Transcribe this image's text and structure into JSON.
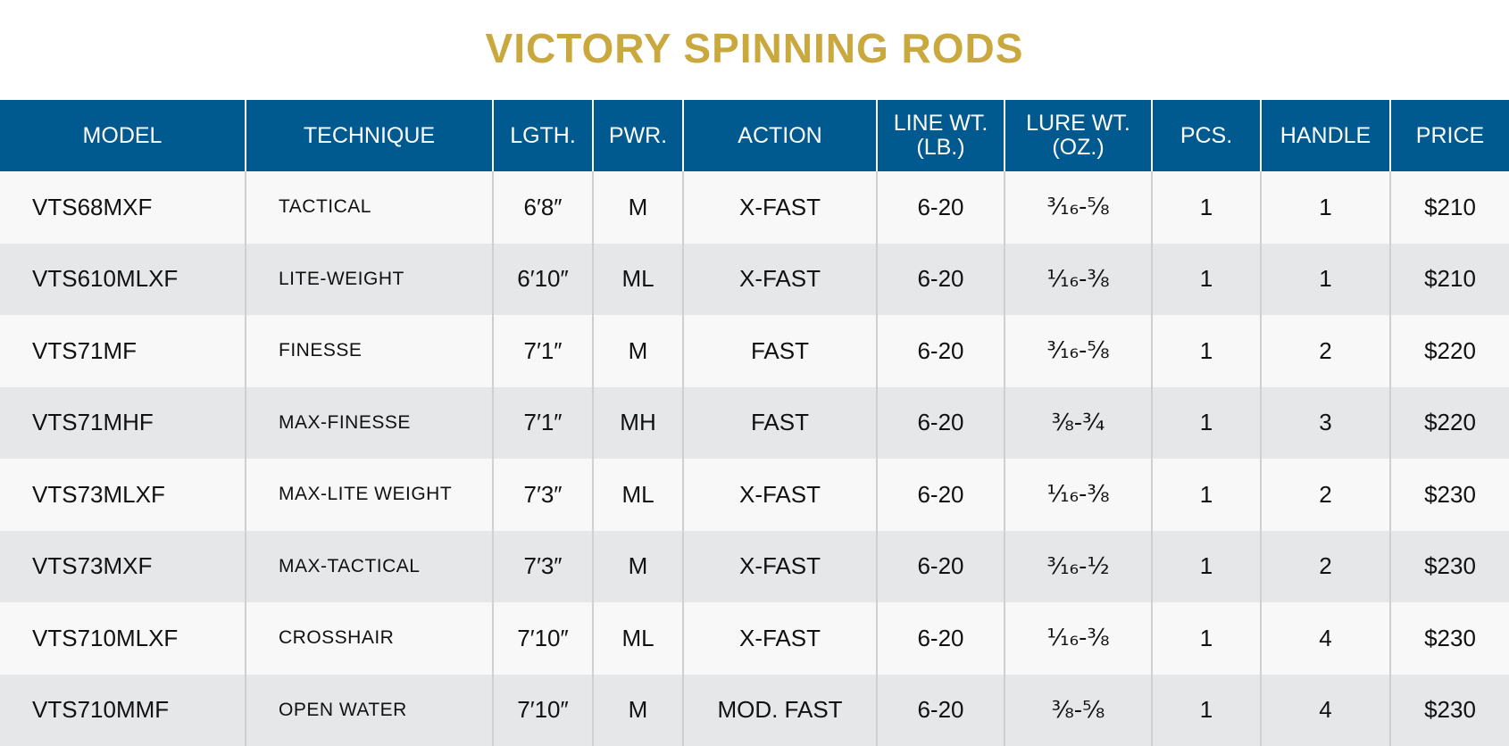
{
  "title": "VICTORY SPINNING RODS",
  "table": {
    "header": [
      [
        "MODEL"
      ],
      [
        "TECHNIQUE"
      ],
      [
        "LGTH."
      ],
      [
        "PWR."
      ],
      [
        "ACTION"
      ],
      [
        "LINE WT.",
        "(LB.)"
      ],
      [
        "LURE WT.",
        "(OZ.)"
      ],
      [
        "PCS."
      ],
      [
        "HANDLE"
      ],
      [
        "PRICE"
      ]
    ],
    "rows": [
      [
        "VTS68MXF",
        "TACTICAL",
        "6′8″",
        "M",
        "X-FAST",
        "6-20",
        "³⁄₁₆-⅝",
        "1",
        "1",
        "$210"
      ],
      [
        "VTS610MLXF",
        "LITE-WEIGHT",
        "6′10″",
        "ML",
        "X-FAST",
        "6-20",
        "¹⁄₁₆-⅜",
        "1",
        "1",
        "$210"
      ],
      [
        "VTS71MF",
        "FINESSE",
        "7′1″",
        "M",
        "FAST",
        "6-20",
        "³⁄₁₆-⅝",
        "1",
        "2",
        "$220"
      ],
      [
        "VTS71MHF",
        "MAX-FINESSE",
        "7′1″",
        "MH",
        "FAST",
        "6-20",
        "⅜-¾",
        "1",
        "3",
        "$220"
      ],
      [
        "VTS73MLXF",
        "MAX-LITE WEIGHT",
        "7′3″",
        "ML",
        "X-FAST",
        "6-20",
        "¹⁄₁₆-⅜",
        "1",
        "2",
        "$230"
      ],
      [
        "VTS73MXF",
        "MAX-TACTICAL",
        "7′3″",
        "M",
        "X-FAST",
        "6-20",
        "³⁄₁₆-½",
        "1",
        "2",
        "$230"
      ],
      [
        "VTS710MLXF",
        "CROSSHAIR",
        "7′10″",
        "ML",
        "X-FAST",
        "6-20",
        "¹⁄₁₆-⅜",
        "1",
        "4",
        "$230"
      ],
      [
        "VTS710MMF",
        "OPEN WATER",
        "7′10″",
        "M",
        "MOD. FAST",
        "6-20",
        "⅜-⅝",
        "1",
        "4",
        "$230"
      ]
    ]
  }
}
